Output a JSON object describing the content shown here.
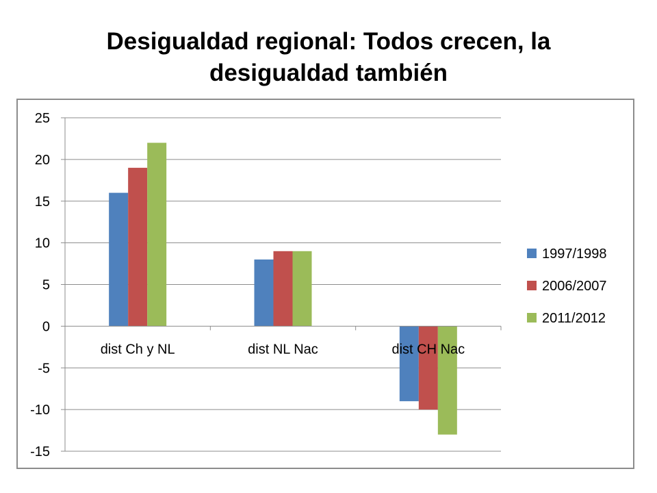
{
  "slide": {
    "title": "Desigualdad regional: Todos crecen, la desigualdad también"
  },
  "chart_data": {
    "type": "bar",
    "title": "",
    "xlabel": "",
    "ylabel": "",
    "categories": [
      "dist Ch y NL",
      "dist NL Nac",
      "dist CH Nac"
    ],
    "series": [
      {
        "name": "1997/1998",
        "color": "#4f81bd",
        "values": [
          16,
          8,
          -9
        ]
      },
      {
        "name": "2006/2007",
        "color": "#c0504d",
        "values": [
          19,
          9,
          -10
        ]
      },
      {
        "name": "2011/2012",
        "color": "#9bbb59",
        "values": [
          22,
          9,
          -13
        ]
      }
    ],
    "ylim": [
      -15,
      25
    ],
    "yticks": [
      25,
      20,
      15,
      10,
      5,
      0,
      -5,
      -10,
      -15
    ],
    "grid": true,
    "legend_position": "right"
  }
}
